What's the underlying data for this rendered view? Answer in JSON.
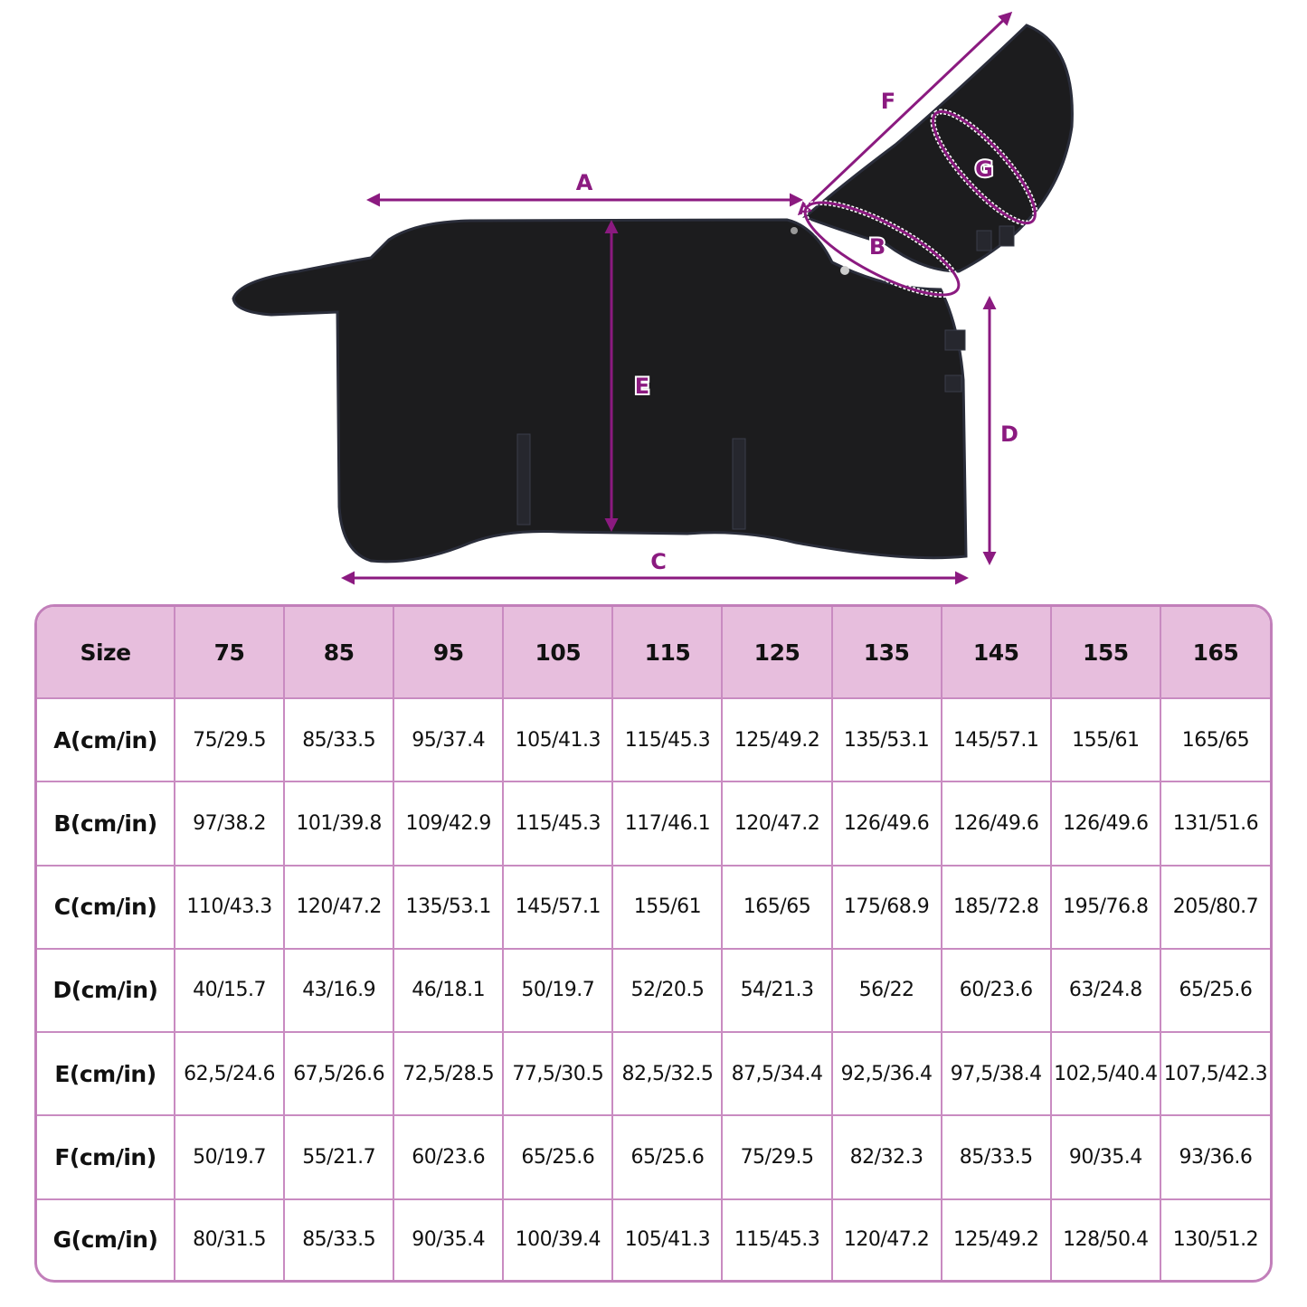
{
  "diagram": {
    "labels": {
      "A": "A",
      "B": "B",
      "C": "C",
      "D": "D",
      "E": "E",
      "F": "F",
      "G": "G"
    },
    "accent_color": "#8b1a80",
    "product_color": "#1c1c1e"
  },
  "table": {
    "header_color": "#e7bedd",
    "border_color": "#c98bc1",
    "columns": [
      "Size",
      "75",
      "85",
      "95",
      "105",
      "115",
      "125",
      "135",
      "145",
      "155",
      "165"
    ],
    "rows": [
      {
        "label": "A(cm/in)",
        "values": [
          "75/29.5",
          "85/33.5",
          "95/37.4",
          "105/41.3",
          "115/45.3",
          "125/49.2",
          "135/53.1",
          "145/57.1",
          "155/61",
          "165/65"
        ]
      },
      {
        "label": "B(cm/in)",
        "values": [
          "97/38.2",
          "101/39.8",
          "109/42.9",
          "115/45.3",
          "117/46.1",
          "120/47.2",
          "126/49.6",
          "126/49.6",
          "126/49.6",
          "131/51.6"
        ]
      },
      {
        "label": "C(cm/in)",
        "values": [
          "110/43.3",
          "120/47.2",
          "135/53.1",
          "145/57.1",
          "155/61",
          "165/65",
          "175/68.9",
          "185/72.8",
          "195/76.8",
          "205/80.7"
        ]
      },
      {
        "label": "D(cm/in)",
        "values": [
          "40/15.7",
          "43/16.9",
          "46/18.1",
          "50/19.7",
          "52/20.5",
          "54/21.3",
          "56/22",
          "60/23.6",
          "63/24.8",
          "65/25.6"
        ]
      },
      {
        "label": "E(cm/in)",
        "values": [
          "62,5/24.6",
          "67,5/26.6",
          "72,5/28.5",
          "77,5/30.5",
          "82,5/32.5",
          "87,5/34.4",
          "92,5/36.4",
          "97,5/38.4",
          "102,5/40.4",
          "107,5/42.3"
        ]
      },
      {
        "label": "F(cm/in)",
        "values": [
          "50/19.7",
          "55/21.7",
          "60/23.6",
          "65/25.6",
          "65/25.6",
          "75/29.5",
          "82/32.3",
          "85/33.5",
          "90/35.4",
          "93/36.6"
        ]
      },
      {
        "label": "G(cm/in)",
        "values": [
          "80/31.5",
          "85/33.5",
          "90/35.4",
          "100/39.4",
          "105/41.3",
          "115/45.3",
          "120/47.2",
          "125/49.2",
          "128/50.4",
          "130/51.2"
        ]
      }
    ]
  }
}
